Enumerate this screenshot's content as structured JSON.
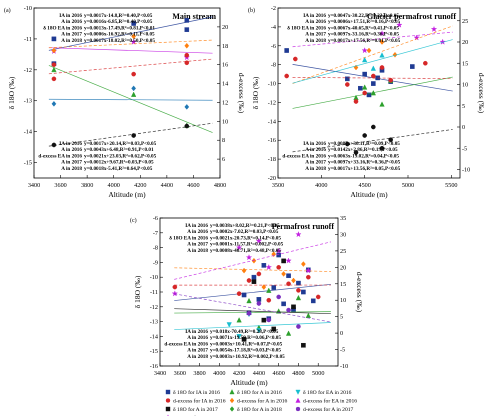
{
  "chart_data": [
    {
      "panel": "(a)",
      "title": "Main stream",
      "type": "scatter",
      "xlabel": "Altitude (m)",
      "ylabel": "δ 18O (‰)",
      "y2label": "d-excess (‰)",
      "xlim": [
        3400,
        4800
      ],
      "ylim": [
        -15.5,
        -10
      ],
      "y2lim": [
        4,
        22
      ],
      "xticks": [
        "3400",
        "3600",
        "3800",
        "4000",
        "4200",
        "4400",
        "4600",
        "4800"
      ],
      "yticks": [
        "-15",
        "-14",
        "-13",
        "-12",
        "-11",
        "-10"
      ],
      "y2ticks": [
        "6",
        "8",
        "10",
        "12",
        "14",
        "16",
        "18",
        "20"
      ],
      "equations_top": [
        {
          "label": "IA in 2016",
          "eq": "y=0.0017x-14.8,R²=0.40,P<0.05"
        },
        {
          "label": "A in 2016",
          "eq": "y=0.0016x-6.85,R²=0.40,P<0.05"
        },
        {
          "label": "δ 18O EA in 2016",
          "eq": "y=0.0013x-17.49,R²=0.81,P<0.01"
        },
        {
          "label": "A in 2017",
          "eq": "y=0.0006x-16.92,R²=0.11,P<0.05"
        },
        {
          "label": "A in 2018",
          "eq": "y=0.0017x-18.02,R²=0.50,P<0.05"
        }
      ],
      "equations_bottom": [
        {
          "label": "IA in 2016",
          "eq": "y=0.0017x+20.14,R²=0.03,P<0.05"
        },
        {
          "label": "A in 2016",
          "eq": "y=0.0043x+6.48,R²=0.91,P<0.01"
        },
        {
          "label": "d-excess EA in 2016",
          "eq": "y=0.0021x+23.03,R²=0.62,P<0.05"
        },
        {
          "label": "A in 2017",
          "eq": "y=0.0012x+9.67,R²=0.03,P<0.05"
        },
        {
          "label": "A in 2018",
          "eq": "y=0.0018x-5.41,R²=0.64,P<0.05"
        }
      ],
      "series": [
        {
          "color": "#1f3a93",
          "marker": "square",
          "axis": "left",
          "x": [
            3550,
            3550,
            4150,
            4550,
            4550
          ],
          "y": [
            -11.0,
            -11.8,
            -10.5,
            -10.4,
            -10.7
          ]
        },
        {
          "color": "#2ca02c",
          "marker": "triangle",
          "axis": "left",
          "x": [
            3550,
            4150,
            4550
          ],
          "y": [
            -12.0,
            -12.8,
            -13.8
          ]
        },
        {
          "color": "#1f77b4",
          "marker": "diamond",
          "axis": "left",
          "x": [
            3550,
            4150,
            4550
          ],
          "y": [
            -13.1,
            -12.6,
            -13.2
          ]
        },
        {
          "color": "#c21de0",
          "marker": "star",
          "axis": "left",
          "x": [
            3550,
            4150,
            4550
          ],
          "y": [
            -11.4,
            -11.1,
            -11.6
          ]
        },
        {
          "color": "#d62728",
          "marker": "circle",
          "axis": "right",
          "x": [
            3550,
            3550,
            4150,
            4550,
            4550
          ],
          "y": [
            14.5,
            16.0,
            15.0,
            16.2,
            17.0
          ]
        },
        {
          "color": "#ff7f0e",
          "marker": "diamond",
          "axis": "right",
          "x": [
            3550,
            4150,
            4550
          ],
          "y": [
            17.5,
            19.0,
            18.0
          ]
        },
        {
          "color": "#111111",
          "marker": "circle",
          "axis": "right",
          "x": [
            3550,
            4150,
            4550
          ],
          "y": [
            7.5,
            8.5,
            9.5
          ]
        }
      ]
    },
    {
      "panel": "(b)",
      "title": "Glacier permafrost runoff",
      "type": "scatter",
      "xlabel": "Altitude (m)",
      "ylabel": "δ 18O (‰)",
      "y2label": "d-excess (‰)",
      "xlim": [
        3500,
        5600
      ],
      "ylim": [
        -20,
        -2
      ],
      "y2lim": [
        -12,
        28
      ],
      "xticks": [
        "3500",
        "4000",
        "4500",
        "5000",
        "5500"
      ],
      "yticks": [
        "-20",
        "-18",
        "-16",
        "-14",
        "-12",
        "-10",
        "-8",
        "-6",
        "-4",
        "-2"
      ],
      "y2ticks": [
        "-10",
        "-5",
        "0",
        "5",
        "10",
        "15",
        "20",
        "25"
      ],
      "equations_top": [
        {
          "label": "IA in 2016",
          "eq": "y=0.0047x-30.22,R²=0.33,P<0.05"
        },
        {
          "label": "A in 2016",
          "eq": "y=0.0006x+17.51,R²=0.16,P<0.05"
        },
        {
          "label": "δ 18O EA in 2016",
          "eq": "y=0.0067x-40.65,R²=0.41,P<0.05"
        },
        {
          "label": "A in 2017",
          "eq": "y=0.0097x-33.16,R²=0.36,P<0.05"
        },
        {
          "label": "A in 2018",
          "eq": "y=0.0017x+17.56,R²=0.01,P<0.05"
        }
      ],
      "equations_bottom": [
        {
          "label": "IA in 2016",
          "eq": "y=0.0087x+30.11,R²=0.09,P<0.05"
        },
        {
          "label": "A in 2016",
          "eq": "y=0.0142x+2.86,R²=0.19,P<0.05"
        },
        {
          "label": "d-excess EA in 2016",
          "eq": "y=0.0063x-19.02,R²=0.04,P<0.05"
        },
        {
          "label": "A in 2017",
          "eq": "y=0.0097x+33.16,R²=0.36,P<0.05"
        },
        {
          "label": "A in 2018",
          "eq": "y=0.0017x+13.56,R²=0.05,P<0.05"
        }
      ],
      "series": [
        {
          "color": "#1f3a93",
          "marker": "square",
          "axis": "left",
          "x": [
            3600,
            4300,
            4450,
            4500,
            4550,
            4600,
            4650,
            4700,
            4800,
            5050
          ],
          "y": [
            -6.5,
            -9.5,
            -10.5,
            -9.0,
            -11.2,
            -10.0,
            -9.4,
            -8.6,
            -9.8,
            -8.2
          ]
        },
        {
          "color": "#2ca02c",
          "marker": "triangle",
          "axis": "left",
          "x": [
            4400,
            4500,
            4600,
            4700,
            4800
          ],
          "y": [
            -11.5,
            -10.4,
            -11.0,
            -12.2,
            -9.7
          ]
        },
        {
          "color": "#d62728",
          "marker": "circle",
          "axis": "right",
          "x": [
            3600,
            3700,
            4300,
            4400,
            4500,
            4600,
            4700,
            4800,
            5200
          ],
          "y": [
            12,
            16,
            10,
            6,
            8,
            12,
            14,
            11,
            15
          ]
        },
        {
          "color": "#111111",
          "marker": "circle",
          "axis": "right",
          "x": [
            4300,
            4400,
            4500,
            4600,
            4700,
            4800
          ],
          "y": [
            -4,
            -6,
            -2,
            0,
            -5,
            -3
          ]
        },
        {
          "color": "#c21de0",
          "marker": "star",
          "axis": "right",
          "x": [
            4500,
            4700,
            4900,
            5100,
            5300,
            5400
          ],
          "y": [
            18,
            22,
            24,
            21,
            23,
            20
          ]
        },
        {
          "color": "#ff7f0e",
          "marker": "diamond",
          "axis": "right",
          "x": [
            4400,
            4550,
            4700,
            4850
          ],
          "y": [
            14,
            18,
            20,
            17
          ]
        },
        {
          "color": "#17becf",
          "marker": "triangle",
          "axis": "left",
          "x": [
            4500,
            4600,
            4700
          ],
          "y": [
            -7.5,
            -8.4,
            -7.0
          ]
        }
      ]
    },
    {
      "panel": "(c)",
      "title": "Permafrost runoff",
      "type": "scatter",
      "xlabel": "Altitude (m)",
      "ylabel": "δ 18O (‰)",
      "y2label": "d-excess (‰)",
      "xlim": [
        3400,
        5200
      ],
      "ylim": [
        -16,
        -6
      ],
      "y2lim": [
        -10,
        35
      ],
      "xticks": [
        "3400",
        "3600",
        "3800",
        "4000",
        "4200",
        "4400",
        "4600",
        "4800",
        "5000"
      ],
      "yticks": [
        "-16",
        "-15",
        "-14",
        "-13",
        "-12",
        "-11",
        "-10",
        "-9",
        "-8",
        "-7",
        "-6"
      ],
      "y2ticks": [
        "-10",
        "-5",
        "0",
        "5",
        "10",
        "15",
        "20",
        "25",
        "30",
        "35"
      ],
      "equations_top": [
        {
          "label": "IA in 2016",
          "eq": "y=0.0038x+8.02,R²=0.21,P<0.05"
        },
        {
          "label": "A in 2016",
          "eq": "y=0.0002x-7.02,R²=0.03,P<0.05"
        },
        {
          "label": "δ 18O EA in 2016",
          "eq": "y=0.0021x-20.73,R²=0.14,P<0.05"
        },
        {
          "label": "A in 2017",
          "eq": "y=0.0001x-11.57,R²=0.002,P<0.05"
        },
        {
          "label": "A in 2018",
          "eq": "y=0.0008x-40.71,R²=0.48,P<0.05"
        }
      ],
      "equations_bottom": [
        {
          "label": "IA in 2016",
          "eq": "y=0.018x-70.49,R²=0.28,P<0.05"
        },
        {
          "label": "A in 2016",
          "eq": "y=0.0071x-19.59,R²=0.06,P<0.05"
        },
        {
          "label": "d-excess EA in 2016",
          "eq": "y=0.0003x+10.41,R²=0.07,P<0.05"
        },
        {
          "label": "A in 2017",
          "eq": "y=0.0054x-17.18,R²=0.03,P<0.05"
        },
        {
          "label": "A in 2018",
          "eq": "y=0.0003x+10.92,R²=0.002,P<0.05"
        }
      ],
      "legend": [
        {
          "label": "δ 18O for IA in 2016",
          "color": "#1f3a93",
          "marker": "square"
        },
        {
          "label": "δ 18O for A in 2016",
          "color": "#2ca02c",
          "marker": "triangle"
        },
        {
          "label": "δ 18O for EA in 2016",
          "color": "#17becf",
          "marker": "triangle-down"
        },
        {
          "label": "d-excess for IA in 2016",
          "color": "#d62728",
          "marker": "circle"
        },
        {
          "label": "d-excess for A in 2016",
          "color": "#ff7f0e",
          "marker": "diamond"
        },
        {
          "label": "d-excess for EA in 2016",
          "color": "#c21de0",
          "marker": "triangle"
        },
        {
          "label": "δ 18O for A in 2017",
          "color": "#111111",
          "marker": "square"
        },
        {
          "label": "δ 18O for A in 2018",
          "color": "#2ca02c",
          "marker": "diamond"
        },
        {
          "label": "d-excess for A in 2017",
          "color": "#7b2fbf",
          "marker": "circle"
        },
        {
          "label": "d-excess for A in 2018",
          "color": "#c21de0",
          "marker": "star"
        }
      ],
      "series": [
        {
          "color": "#1f3a93",
          "marker": "square",
          "axis": "left",
          "x": [
            4250,
            4300,
            4350,
            4400,
            4450,
            4500,
            4550,
            4600,
            4650,
            4700,
            4750,
            4800,
            4850,
            4900,
            4950
          ],
          "y": [
            -11.2,
            -12.4,
            -10.0,
            -11.5,
            -9.2,
            -12.8,
            -10.7,
            -8.5,
            -11.8,
            -9.9,
            -12.2,
            -10.4,
            -11.0,
            -9.5,
            -11.6
          ]
        },
        {
          "color": "#2ca02c",
          "marker": "triangle",
          "axis": "left",
          "x": [
            4200,
            4300,
            4400,
            4500,
            4600,
            4700,
            4800,
            4900
          ],
          "y": [
            -12.9,
            -11.6,
            -13.4,
            -10.9,
            -12.3,
            -13.8,
            -11.4,
            -12.6
          ]
        },
        {
          "color": "#17becf",
          "marker": "triangle-down",
          "axis": "left",
          "x": [
            4100,
            4200,
            4300,
            4400
          ],
          "y": [
            -13.2,
            -14.0,
            -12.5,
            -13.6
          ]
        },
        {
          "color": "#111111",
          "marker": "square",
          "axis": "left",
          "x": [
            4250,
            4350,
            4450,
            4550,
            4650,
            4750,
            4850
          ],
          "y": [
            -14.2,
            -10.3,
            -12.9,
            -13.5,
            -8.9,
            -12.0,
            -14.6
          ]
        },
        {
          "color": "#d62728",
          "marker": "circle",
          "axis": "right",
          "x": [
            3550,
            4200,
            4300,
            4400,
            4500,
            4600,
            4700,
            4800,
            4900,
            5000
          ],
          "y": [
            14,
            12,
            16,
            18,
            10,
            20,
            15,
            13,
            17,
            11
          ]
        },
        {
          "color": "#ff7f0e",
          "marker": "diamond",
          "axis": "right",
          "x": [
            4250,
            4350,
            4450,
            4550,
            4650,
            4750,
            4850
          ],
          "y": [
            19,
            22,
            14,
            24,
            18,
            16,
            21
          ]
        },
        {
          "color": "#c21de0",
          "marker": "star",
          "axis": "right",
          "x": [
            3550,
            4200,
            4300,
            4400,
            4500,
            4600,
            4700,
            4800,
            4900
          ],
          "y": [
            12,
            26,
            23,
            28,
            20,
            25,
            22,
            30,
            19
          ]
        },
        {
          "color": "#7b2fbf",
          "marker": "circle",
          "axis": "right",
          "x": [
            4300,
            4400,
            4500,
            4600,
            4700,
            4800
          ],
          "y": [
            6,
            9,
            4,
            11,
            7,
            2
          ]
        }
      ]
    }
  ]
}
